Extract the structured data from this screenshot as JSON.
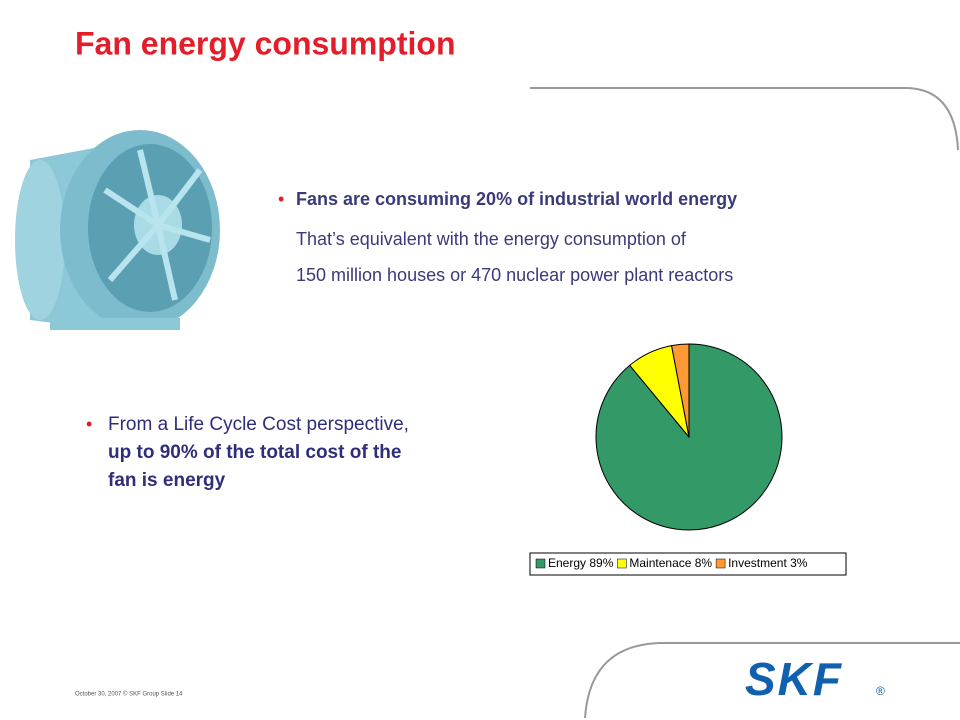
{
  "title": "Fan energy consumption",
  "bullet_1": {
    "lines": [
      "Fans are consuming 20% of industrial world energy",
      "That’s equivalent with the energy consumption of",
      "150 million houses or 470 nuclear power plant reactors"
    ]
  },
  "bullet_2": {
    "lines": [
      "From a Life Cycle Cost perspective,",
      "up to 90% of the total cost of the",
      "fan is energy"
    ]
  },
  "chart_data": {
    "type": "pie",
    "categories": [
      "Energy 89%",
      "Maintenace 8%",
      "Investment 3%"
    ],
    "values": [
      89,
      8,
      3
    ],
    "colors": [
      "#339966",
      "#ffff00",
      "#ff9933"
    ]
  },
  "footer": "October 30, 2007 © SKF Group  Slide 14",
  "logo": "SKF"
}
